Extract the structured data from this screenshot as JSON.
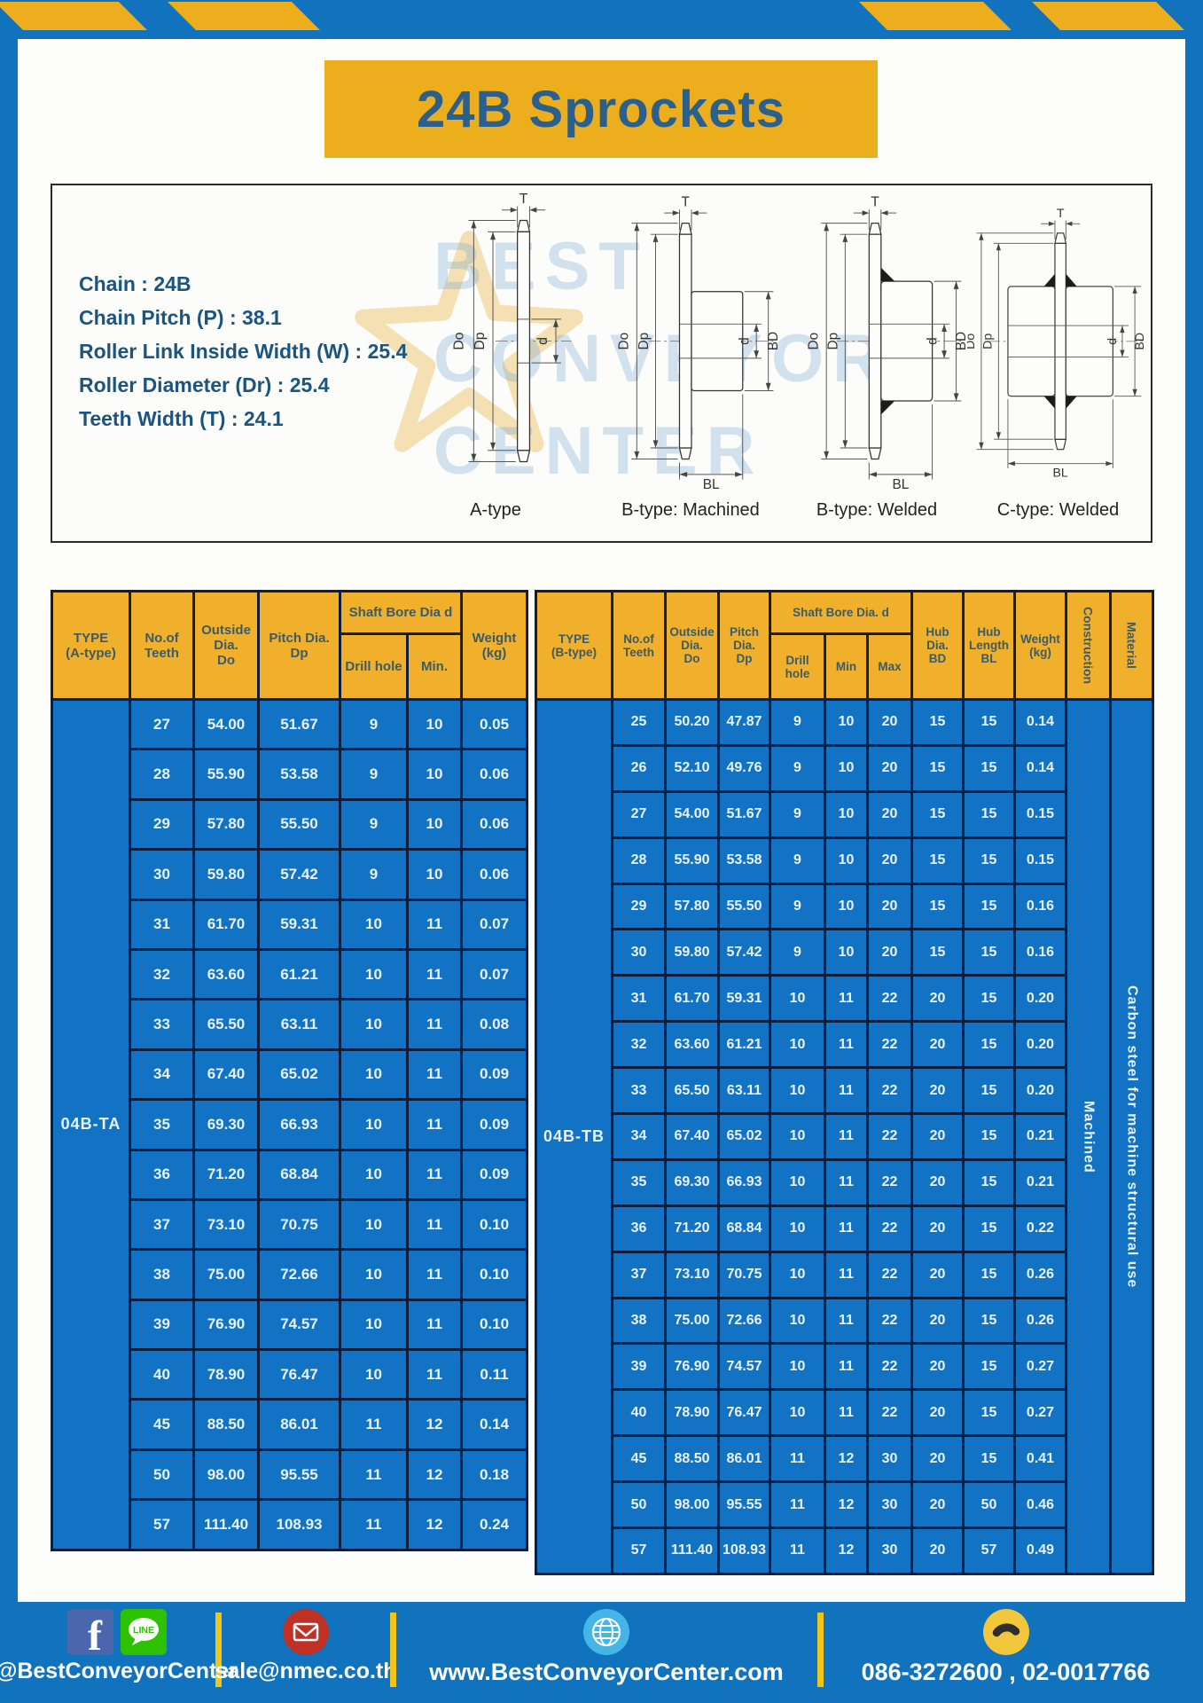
{
  "page": {
    "title": "24B Sprockets"
  },
  "specs": {
    "lines": [
      "Chain  : 24B",
      "Chain Pitch (P)  :  38.1",
      "Roller Link Inside Width (W)  :  25.4",
      "Roller Diameter (Dr)  : 25.4",
      "Teeth Width (T)  :  24.1"
    ]
  },
  "diagram": {
    "labels": [
      "A-type",
      "B-type: Machined",
      "B-type: Welded",
      "C-type: Welded"
    ],
    "dims": {
      "T": "T",
      "Do": "Do",
      "Dp": "Dp",
      "d": "d",
      "BD": "BD",
      "BL": "BL"
    },
    "watermark": "BEST\nCONVEYOR\nCENTER"
  },
  "tables": {
    "left": {
      "type_label": "04B-TA",
      "headers": {
        "type": "TYPE\n(A-type)",
        "teeth": "No.of\nTeeth",
        "outside": "Outside\nDia.\nDo",
        "pitch": "Pitch Dia.\nDp",
        "shaft_bore": "Shaft Bore Dia d",
        "drill": "Drill hole",
        "min": "Min.",
        "weight": "Weight\n(kg)"
      },
      "rows": [
        [
          "27",
          "54.00",
          "51.67",
          "9",
          "10",
          "0.05"
        ],
        [
          "28",
          "55.90",
          "53.58",
          "9",
          "10",
          "0.06"
        ],
        [
          "29",
          "57.80",
          "55.50",
          "9",
          "10",
          "0.06"
        ],
        [
          "30",
          "59.80",
          "57.42",
          "9",
          "10",
          "0.06"
        ],
        [
          "31",
          "61.70",
          "59.31",
          "10",
          "11",
          "0.07"
        ],
        [
          "32",
          "63.60",
          "61.21",
          "10",
          "11",
          "0.07"
        ],
        [
          "33",
          "65.50",
          "63.11",
          "10",
          "11",
          "0.08"
        ],
        [
          "34",
          "67.40",
          "65.02",
          "10",
          "11",
          "0.09"
        ],
        [
          "35",
          "69.30",
          "66.93",
          "10",
          "11",
          "0.09"
        ],
        [
          "36",
          "71.20",
          "68.84",
          "10",
          "11",
          "0.09"
        ],
        [
          "37",
          "73.10",
          "70.75",
          "10",
          "11",
          "0.10"
        ],
        [
          "38",
          "75.00",
          "72.66",
          "10",
          "11",
          "0.10"
        ],
        [
          "39",
          "76.90",
          "74.57",
          "10",
          "11",
          "0.10"
        ],
        [
          "40",
          "78.90",
          "76.47",
          "10",
          "11",
          "0.11"
        ],
        [
          "45",
          "88.50",
          "86.01",
          "11",
          "12",
          "0.14"
        ],
        [
          "50",
          "98.00",
          "95.55",
          "11",
          "12",
          "0.18"
        ],
        [
          "57",
          "111.40",
          "108.93",
          "11",
          "12",
          "0.24"
        ]
      ]
    },
    "right": {
      "type_label": "04B-TB",
      "construction": "Machined",
      "material": "Carbon steel for machine structural use",
      "headers": {
        "type": "TYPE\n(B-type)",
        "teeth": "No.of\nTeeth",
        "outside": "Outside\nDia.\nDo",
        "pitch": "Pitch\nDia.\nDp",
        "shaft_bore": "Shaft Bore Dia.  d",
        "drill": "Drill hole",
        "min": "Min",
        "max": "Max",
        "hub_dia": "Hub\nDia.\nBD",
        "hub_len": "Hub\nLength\nBL",
        "weight": "Weight\n(kg)",
        "construction": "Construction",
        "material": "Material"
      },
      "rows": [
        [
          "25",
          "50.20",
          "47.87",
          "9",
          "10",
          "20",
          "15",
          "15",
          "0.14"
        ],
        [
          "26",
          "52.10",
          "49.76",
          "9",
          "10",
          "20",
          "15",
          "15",
          "0.14"
        ],
        [
          "27",
          "54.00",
          "51.67",
          "9",
          "10",
          "20",
          "15",
          "15",
          "0.15"
        ],
        [
          "28",
          "55.90",
          "53.58",
          "9",
          "10",
          "20",
          "15",
          "15",
          "0.15"
        ],
        [
          "29",
          "57.80",
          "55.50",
          "9",
          "10",
          "20",
          "15",
          "15",
          "0.16"
        ],
        [
          "30",
          "59.80",
          "57.42",
          "9",
          "10",
          "20",
          "15",
          "15",
          "0.16"
        ],
        [
          "31",
          "61.70",
          "59.31",
          "10",
          "11",
          "22",
          "20",
          "15",
          "0.20"
        ],
        [
          "32",
          "63.60",
          "61.21",
          "10",
          "11",
          "22",
          "20",
          "15",
          "0.20"
        ],
        [
          "33",
          "65.50",
          "63.11",
          "10",
          "11",
          "22",
          "20",
          "15",
          "0.20"
        ],
        [
          "34",
          "67.40",
          "65.02",
          "10",
          "11",
          "22",
          "20",
          "15",
          "0.21"
        ],
        [
          "35",
          "69.30",
          "66.93",
          "10",
          "11",
          "22",
          "20",
          "15",
          "0.21"
        ],
        [
          "36",
          "71.20",
          "68.84",
          "10",
          "11",
          "22",
          "20",
          "15",
          "0.22"
        ],
        [
          "37",
          "73.10",
          "70.75",
          "10",
          "11",
          "22",
          "20",
          "15",
          "0.26"
        ],
        [
          "38",
          "75.00",
          "72.66",
          "10",
          "11",
          "22",
          "20",
          "15",
          "0.26"
        ],
        [
          "39",
          "76.90",
          "74.57",
          "10",
          "11",
          "22",
          "20",
          "15",
          "0.27"
        ],
        [
          "40",
          "78.90",
          "76.47",
          "10",
          "11",
          "22",
          "20",
          "15",
          "0.27"
        ],
        [
          "45",
          "88.50",
          "86.01",
          "11",
          "12",
          "30",
          "20",
          "15",
          "0.41"
        ],
        [
          "50",
          "98.00",
          "95.55",
          "11",
          "12",
          "30",
          "20",
          "50",
          "0.46"
        ],
        [
          "57",
          "111.40",
          "108.93",
          "11",
          "12",
          "30",
          "20",
          "57",
          "0.49"
        ]
      ]
    }
  },
  "footer": {
    "social": {
      "label": "@BestConveyorCenter",
      "fb_letter": "f",
      "line_text": "LINE"
    },
    "email": {
      "label": "sale@nmec.co.th"
    },
    "website": {
      "label": "www.BestConveyorCenter.com"
    },
    "phone": {
      "label": "086-3272600 , 02-0017766"
    }
  },
  "colors": {
    "frame_blue": "#1172BD",
    "accent_yellow": "#EDAE1E",
    "header_yellow": "#F0B02B",
    "cell_blue": "#1273C4",
    "title_navy": "#2B5F8D",
    "divider_yellow": "#F0C419"
  }
}
